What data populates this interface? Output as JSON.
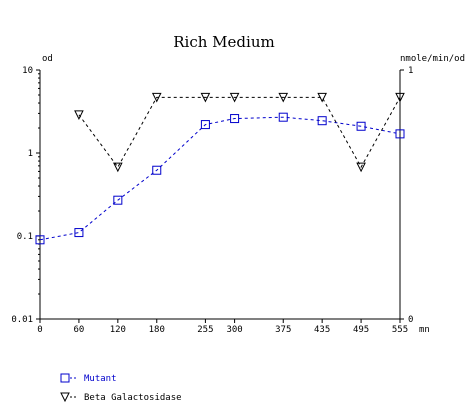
{
  "chart_data": {
    "type": "line",
    "title": "Rich Medium",
    "left_axis": {
      "label": "od",
      "scale": "log",
      "range": [
        0.01,
        10
      ],
      "ticks": [
        "10",
        "1",
        "0.1",
        "0.01"
      ]
    },
    "right_axis": {
      "label": "nmole/min/od",
      "scale": "linear",
      "range": [
        0,
        1
      ],
      "ticks": [
        "1",
        "0"
      ]
    },
    "x_axis": {
      "label": "mn",
      "range": [
        0,
        555
      ],
      "ticks": [
        0,
        60,
        120,
        180,
        255,
        300,
        375,
        435,
        495,
        555
      ],
      "tick_labels": [
        "0",
        "60",
        "120",
        "180",
        "255",
        "300",
        "375",
        "435",
        "495",
        "555"
      ]
    },
    "grid": false,
    "legend_position": "bottom-left",
    "series": [
      {
        "name": "Mutant",
        "axis": "left",
        "color": "#0000cc",
        "marker": "square",
        "x": [
          0,
          60,
          120,
          180,
          255,
          300,
          375,
          435,
          495,
          555
        ],
        "y": [
          0.09,
          0.11,
          0.27,
          0.62,
          2.2,
          2.6,
          2.7,
          2.45,
          2.1,
          1.7
        ]
      },
      {
        "name": "Beta Galactosidase",
        "axis": "right",
        "color": "#000000",
        "marker": "triangle-down",
        "x": [
          60,
          120,
          180,
          255,
          300,
          375,
          435,
          495,
          555
        ],
        "y": [
          0.82,
          0.61,
          0.89,
          0.89,
          0.89,
          0.89,
          0.89,
          0.61,
          0.89
        ]
      }
    ]
  }
}
